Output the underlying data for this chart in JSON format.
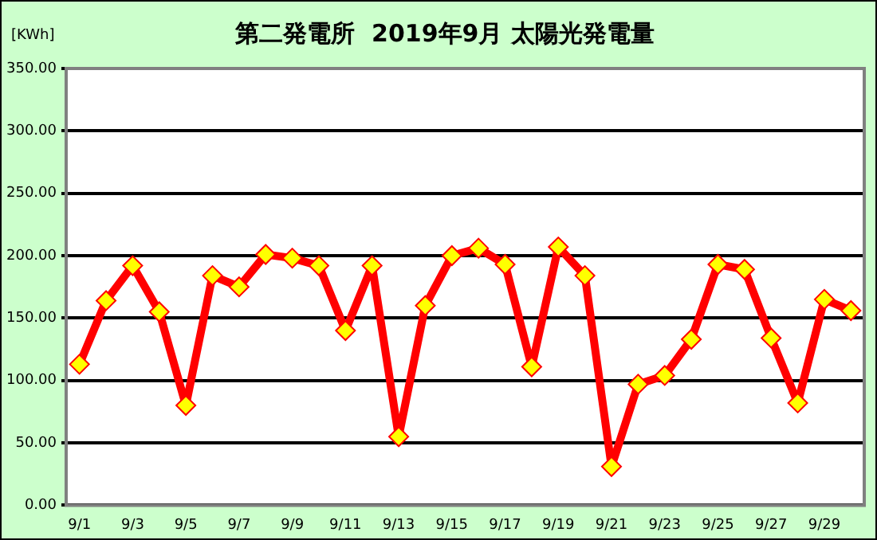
{
  "chart_data": {
    "type": "line",
    "title": "第二発電所  2019年9月 太陽光発電量",
    "ylabel": "[KWh]",
    "categories": [
      "9/1",
      null,
      "9/3",
      null,
      "9/5",
      null,
      "9/7",
      null,
      "9/9",
      null,
      "9/11",
      null,
      "9/13",
      null,
      "9/15",
      null,
      "9/17",
      null,
      "9/19",
      null,
      "9/21",
      null,
      "9/23",
      null,
      "9/25",
      null,
      "9/27",
      null,
      "9/29",
      null
    ],
    "series": [
      {
        "color": "#ff0000",
        "values": [
          113,
          164,
          192,
          155,
          80,
          184,
          175,
          201,
          198,
          192,
          140,
          192,
          55,
          160,
          200,
          206,
          193,
          111,
          207,
          184,
          31,
          97,
          104,
          133,
          193,
          189,
          134,
          82,
          165,
          156
        ]
      }
    ],
    "ylim": [
      0,
      350
    ],
    "yticks": [
      {
        "value": 0,
        "label": "0.00"
      },
      {
        "value": 50,
        "label": "50.00"
      },
      {
        "value": 100,
        "label": "100.00"
      },
      {
        "value": 150,
        "label": "150.00"
      },
      {
        "value": 200,
        "label": "200.00"
      },
      {
        "value": 250,
        "label": "250.00"
      },
      {
        "value": 300,
        "label": "300.00"
      },
      {
        "value": 350,
        "label": "350.00"
      }
    ],
    "grid": "y",
    "marker": "diamond",
    "line_style": "solid",
    "legend": false
  }
}
